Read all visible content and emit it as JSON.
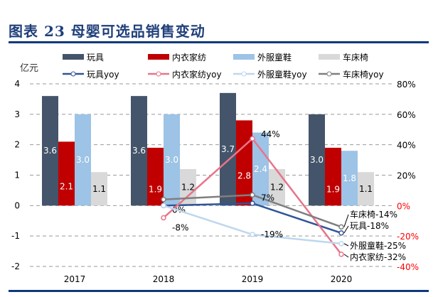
{
  "title": "图表 23   母婴可选品销售变动",
  "chart_data": {
    "type": "bar",
    "title": "图表 23   母婴可选品销售变动",
    "ylabel": "亿元",
    "ylim": [
      -2,
      4
    ],
    "y_ticks": [
      "-2",
      "-1",
      "0",
      "1",
      "2",
      "3",
      "4"
    ],
    "y2lim": [
      -40,
      80
    ],
    "y2_ticks": [
      "-40%",
      "-20%",
      "0%",
      "20%",
      "40%",
      "60%",
      "80%"
    ],
    "categories": [
      "2017",
      "2018",
      "2019",
      "2020"
    ],
    "grid": "dashed horizontal",
    "legend": "top",
    "series": [
      {
        "name": "玩具",
        "kind": "bar",
        "color": "#44546a",
        "values": [
          3.6,
          3.6,
          3.7,
          3.0
        ],
        "labels": [
          "3.6",
          "3.6",
          "3.7",
          "3.0"
        ]
      },
      {
        "name": "内衣家纺",
        "kind": "bar",
        "color": "#c00000",
        "values": [
          2.1,
          1.9,
          2.8,
          1.9
        ],
        "labels": [
          "2.1",
          "1.9",
          "2.8",
          "1.9"
        ]
      },
      {
        "name": "外服童鞋",
        "kind": "bar",
        "color": "#9dc3e6",
        "values": [
          3.0,
          3.0,
          2.4,
          1.8
        ],
        "labels": [
          "3.0",
          "3.0",
          "2.4",
          "1.8"
        ]
      },
      {
        "name": "车床椅",
        "kind": "bar",
        "color": "#d9d9d9",
        "values": [
          1.1,
          1.2,
          1.2,
          1.1
        ],
        "labels": [
          "1.1",
          "1.2",
          "1.2",
          "1.1"
        ]
      },
      {
        "name": "玩具yoy",
        "kind": "line",
        "color": "#2f5597",
        "values": [
          null,
          0,
          1.5,
          -18
        ],
        "labels": [
          null,
          "0%",
          null,
          "玩具-18%"
        ]
      },
      {
        "name": "内衣家纺yoy",
        "kind": "line",
        "color": "#e8748a",
        "values": [
          null,
          -8,
          44,
          -32
        ],
        "labels": [
          null,
          "-8%",
          "44%",
          "内衣家纺-32%"
        ]
      },
      {
        "name": "外服童鞋yoy",
        "kind": "line",
        "color": "#bdd7ee",
        "values": [
          null,
          0,
          -19,
          -25
        ],
        "labels": [
          null,
          null,
          "-19%",
          "外服童鞋-25%"
        ]
      },
      {
        "name": "车床椅yoy",
        "kind": "line",
        "color": "#7f7f7f",
        "values": [
          null,
          4,
          7,
          -14
        ],
        "labels": [
          null,
          null,
          "7%",
          "车床椅-14%"
        ]
      }
    ],
    "negative_tick_color": "#ff0000"
  }
}
